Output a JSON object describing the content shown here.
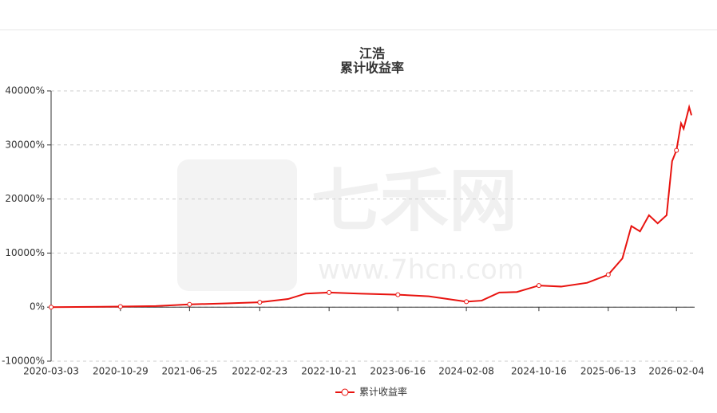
{
  "chart_data": {
    "type": "line",
    "title": "江浩",
    "subtitle": "累计收益率",
    "watermark": "七禾网",
    "watermark_url": "www.7hcn.com",
    "x": [
      "2020-03-03",
      "2020-10-29",
      "2021-03-01",
      "2021-06-25",
      "2021-11-01",
      "2022-02-23",
      "2022-06-01",
      "2022-08-01",
      "2022-10-21",
      "2023-02-01",
      "2023-06-16",
      "2023-10-01",
      "2024-02-08",
      "2024-04-01",
      "2024-06-01",
      "2024-08-01",
      "2024-10-16",
      "2025-01-01",
      "2025-04-01",
      "2025-06-13",
      "2025-08-01",
      "2025-09-01",
      "2025-10-01",
      "2025-11-01",
      "2025-12-01",
      "2026-01-01",
      "2026-01-20",
      "2026-02-04",
      "2026-02-20",
      "2026-03-01",
      "2026-03-20",
      "2026-03-28"
    ],
    "series": [
      {
        "name": "累计收益率",
        "color": "#e8130f",
        "values": [
          0,
          100,
          200,
          500,
          700,
          900,
          1500,
          2500,
          2700,
          2500,
          2300,
          2000,
          1000,
          1200,
          2700,
          2800,
          4000,
          3800,
          4500,
          6000,
          9000,
          15000,
          14000,
          17000,
          15500,
          17000,
          27000,
          29000,
          34000,
          33000,
          37000,
          35500
        ]
      }
    ],
    "xlim": [
      "2020-03-03",
      "2026-04-08"
    ],
    "xticks": [
      "2020-03-03",
      "2020-10-29",
      "2021-06-25",
      "2022-02-23",
      "2022-10-21",
      "2023-06-16",
      "2024-02-08",
      "2024-10-16",
      "2025-06-13",
      "2026-02-04"
    ],
    "ylim": [
      -10000,
      40000
    ],
    "yticks": [
      {
        "value": -10000,
        "label": "-10000%"
      },
      {
        "value": 0,
        "label": "0%"
      },
      {
        "value": 10000,
        "label": "10000%"
      },
      {
        "value": 20000,
        "label": "20000%"
      },
      {
        "value": 30000,
        "label": "30000%"
      },
      {
        "value": 40000,
        "label": "40000%"
      }
    ],
    "grid": true,
    "legend": "bottom"
  }
}
